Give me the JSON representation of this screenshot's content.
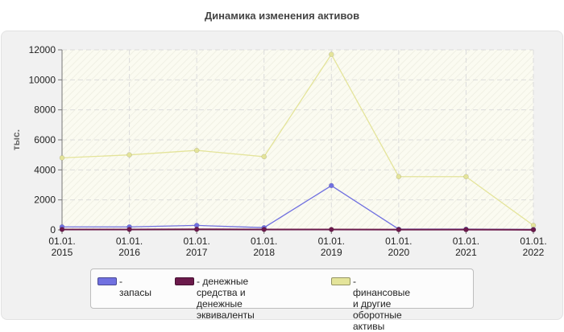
{
  "title": "Динамика изменения активов",
  "chart_data": {
    "type": "line",
    "ylabel": "тыс.",
    "xlabel": "",
    "x": [
      "01.01.\n2015",
      "01.01.\n2016",
      "01.01.\n2017",
      "01.01.\n2018",
      "01.01.\n2019",
      "01.01.\n2020",
      "01.01.\n2021",
      "01.01.\n2022"
    ],
    "ylim": [
      0,
      12000
    ],
    "yticks": [
      0,
      2000,
      4000,
      6000,
      8000,
      10000,
      12000
    ],
    "grid": true,
    "legend_position": "bottom",
    "series": [
      {
        "name": "- запасы",
        "color": "#7070e0",
        "values": [
          200,
          200,
          300,
          150,
          2950,
          50,
          50,
          30
        ]
      },
      {
        "name": "- денежные средства и\nденежные эквиваленты",
        "color": "#6b1a4b",
        "values": [
          30,
          30,
          40,
          30,
          30,
          20,
          20,
          10
        ]
      },
      {
        "name": "- финансовые и другие\nоборотные активы",
        "color": "#e4e49a",
        "values": [
          4800,
          5000,
          5300,
          4880,
          11700,
          3550,
          3550,
          300
        ]
      }
    ]
  }
}
